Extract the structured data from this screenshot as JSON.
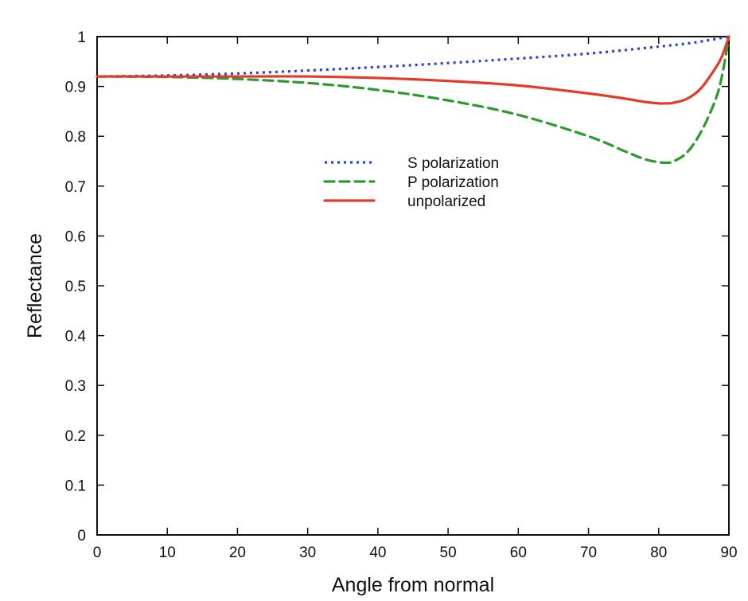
{
  "chart_data": {
    "type": "line",
    "title": "",
    "xlabel": "Angle from normal",
    "ylabel": "Reflectance",
    "xlim": [
      0,
      90
    ],
    "ylim": [
      0,
      1
    ],
    "xticks": [
      0,
      10,
      20,
      30,
      40,
      50,
      60,
      70,
      80,
      90
    ],
    "yticks": [
      0,
      0.1,
      0.2,
      0.3,
      0.4,
      0.5,
      0.6,
      0.7,
      0.8,
      0.9,
      1
    ],
    "grid": false,
    "legend_position": "upper-middle",
    "series": [
      {
        "name": "S polarization",
        "color": "#2b3fd6",
        "dash": "dotted",
        "x": [
          0,
          10,
          20,
          30,
          40,
          50,
          60,
          70,
          80,
          85,
          90
        ],
        "y": [
          0.92,
          0.922,
          0.926,
          0.932,
          0.939,
          0.947,
          0.956,
          0.966,
          0.98,
          0.988,
          1.0
        ]
      },
      {
        "name": "P polarization",
        "color": "#2e9a2e",
        "dash": "dashed",
        "x": [
          0,
          10,
          20,
          30,
          40,
          50,
          60,
          70,
          75,
          78,
          80,
          81,
          82,
          84,
          86,
          88,
          89,
          90
        ],
        "y": [
          0.92,
          0.919,
          0.915,
          0.907,
          0.893,
          0.872,
          0.843,
          0.8,
          0.771,
          0.754,
          0.748,
          0.747,
          0.749,
          0.767,
          0.808,
          0.87,
          0.92,
          1.0
        ]
      },
      {
        "name": "unpolarized",
        "color": "#e23b2a",
        "dash": "solid",
        "x": [
          0,
          10,
          20,
          30,
          40,
          50,
          60,
          70,
          75,
          78,
          80,
          81,
          82,
          84,
          86,
          88,
          89,
          90
        ],
        "y": [
          0.92,
          0.92,
          0.92,
          0.92,
          0.917,
          0.911,
          0.902,
          0.886,
          0.876,
          0.869,
          0.866,
          0.866,
          0.867,
          0.875,
          0.896,
          0.935,
          0.96,
          1.0
        ]
      }
    ]
  }
}
